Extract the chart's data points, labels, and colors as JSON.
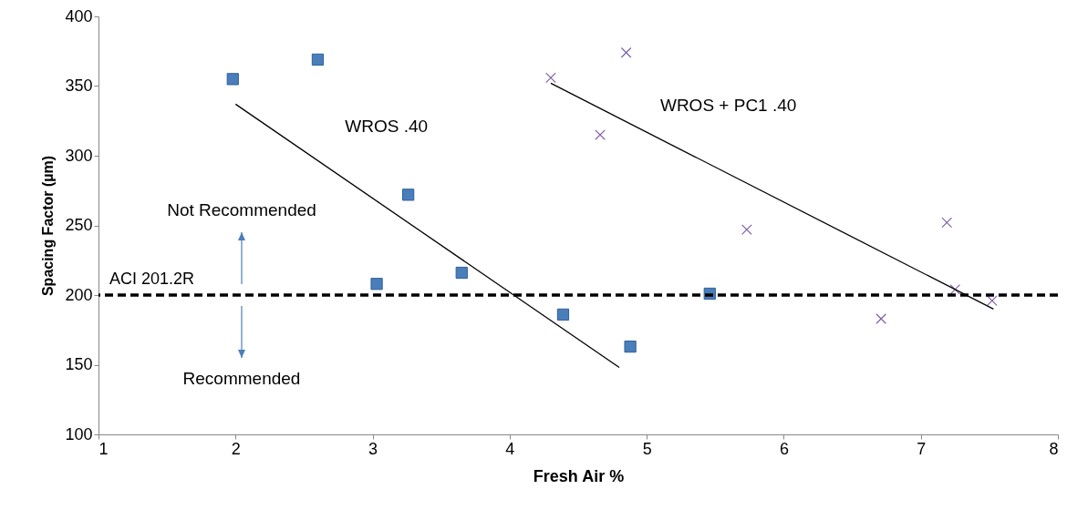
{
  "chart_data": {
    "type": "scatter",
    "xlabel": "Fresh Air %",
    "ylabel": "Spacing Factor (µm)",
    "xlim": [
      1,
      8
    ],
    "xticks": [
      1,
      2,
      3,
      4,
      5,
      6,
      7,
      8
    ],
    "ylim": [
      100,
      400
    ],
    "yticks": [
      100,
      150,
      200,
      250,
      300,
      350,
      400
    ],
    "grid": false,
    "series": [
      {
        "marker": "square",
        "color": "#4a7ebb",
        "x": [
          1.98,
          2.6,
          3.26,
          3.03,
          3.65,
          4.39,
          4.88,
          5.46
        ],
        "values": [
          355,
          369,
          272,
          208,
          216,
          186,
          163,
          201
        ]
      },
      {
        "marker": "cross",
        "color": "#7f60a8",
        "x": [
          4.3,
          4.66,
          4.85,
          5.73,
          6.71,
          7.19,
          7.25,
          7.52
        ],
        "values": [
          356,
          315,
          374,
          247,
          183,
          252,
          204,
          196
        ]
      },
      {
        "type": "line",
        "name": "WROS .40",
        "color": "#000000",
        "x": [
          2.0,
          4.8
        ],
        "values": [
          337,
          148
        ]
      },
      {
        "type": "line",
        "name": "WROS + PC1 .40",
        "color": "#000000",
        "x": [
          4.3,
          7.53
        ],
        "values": [
          352,
          190
        ]
      }
    ],
    "ref_lines": [
      {
        "axis": "y",
        "value": 200,
        "label": "ACI 201.2R",
        "color": "#000000",
        "line_style": "dashed"
      }
    ],
    "annotations": [
      "Not Recommended",
      "Recommended"
    ]
  }
}
